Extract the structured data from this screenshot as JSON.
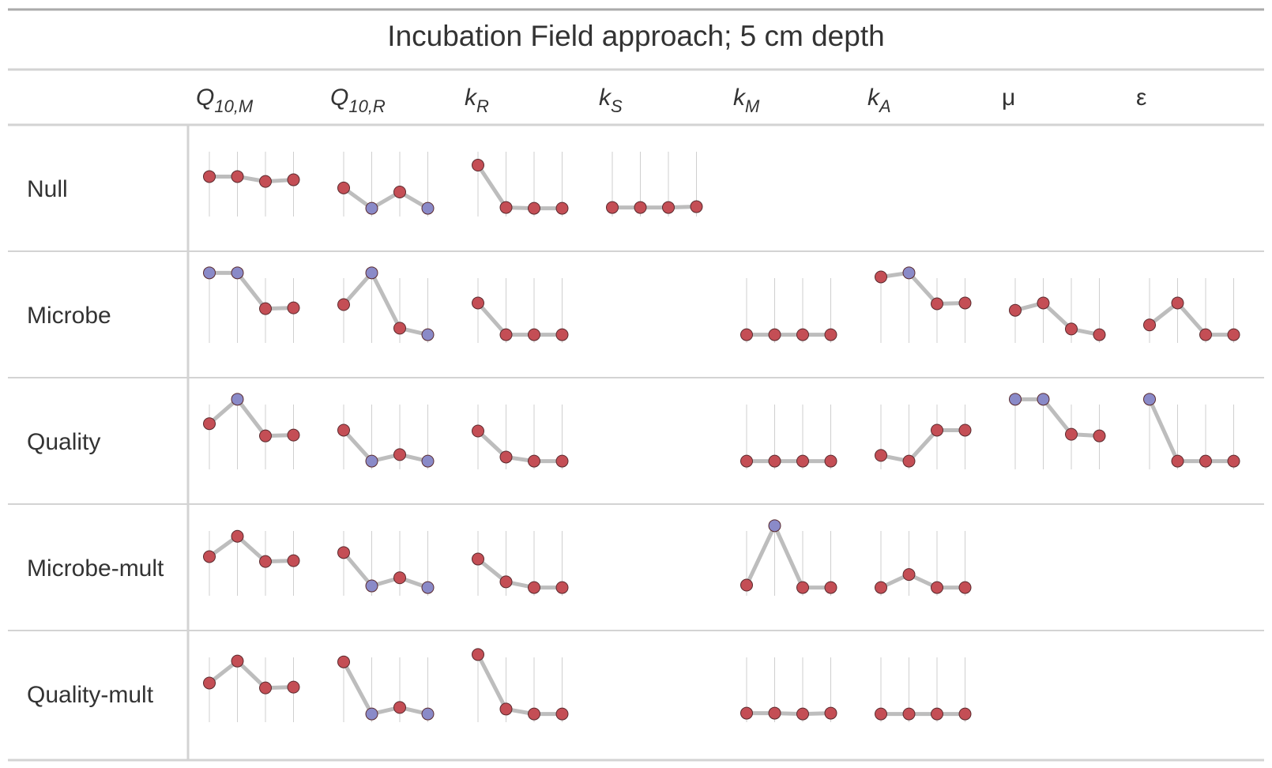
{
  "title": "Incubation Field approach; 5 cm depth",
  "columns": [
    {
      "id": "q10m",
      "main": "Q",
      "sub": "10,M"
    },
    {
      "id": "q10r",
      "main": "Q",
      "sub": "10,R"
    },
    {
      "id": "kr",
      "main": "k",
      "sub": "R"
    },
    {
      "id": "ks",
      "main": "k",
      "sub": "S"
    },
    {
      "id": "km",
      "main": "k",
      "sub": "M"
    },
    {
      "id": "ka",
      "main": "k",
      "sub": "A"
    },
    {
      "id": "mu",
      "main": "μ",
      "sub": ""
    },
    {
      "id": "eps",
      "main": "ε",
      "sub": ""
    }
  ],
  "rows": [
    "Null",
    "Microbe",
    "Quality",
    "Microbe-mult",
    "Quality-mult"
  ],
  "colors": {
    "red_point": "#C44E55",
    "blue_point": "#8A8AC8",
    "line": "#BDBDBD",
    "gridline": "#CFCFCF",
    "rule": "#AAAAAA"
  },
  "chart_data": {
    "type": "line",
    "title": "Incubation Field approach; 5 cm depth",
    "note": "Each cell is a four-point sparkline; y values are relative levels within the cell (0 = lowest, 1 = highest); color marks the point as red or blue.",
    "cells": [
      {
        "row": "Null",
        "column": "Q10,M",
        "values": [
          0.52,
          0.52,
          0.46,
          0.48
        ],
        "colors": [
          "red",
          "red",
          "red",
          "red"
        ]
      },
      {
        "row": "Null",
        "column": "Q10,R",
        "values": [
          0.38,
          0.13,
          0.33,
          0.13
        ],
        "colors": [
          "red",
          "blue",
          "red",
          "blue"
        ]
      },
      {
        "row": "Null",
        "column": "kR",
        "values": [
          0.66,
          0.14,
          0.13,
          0.13
        ],
        "colors": [
          "red",
          "red",
          "red",
          "red"
        ]
      },
      {
        "row": "Null",
        "column": "kS",
        "values": [
          0.14,
          0.14,
          0.14,
          0.15
        ],
        "colors": [
          "red",
          "red",
          "red",
          "red"
        ]
      },
      {
        "row": "Microbe",
        "column": "Q10,M",
        "values": [
          0.89,
          0.89,
          0.45,
          0.46
        ],
        "colors": [
          "blue",
          "blue",
          "red",
          "red"
        ]
      },
      {
        "row": "Microbe",
        "column": "Q10,R",
        "values": [
          0.5,
          0.89,
          0.21,
          0.13
        ],
        "colors": [
          "red",
          "blue",
          "red",
          "blue"
        ]
      },
      {
        "row": "Microbe",
        "column": "kR",
        "values": [
          0.52,
          0.13,
          0.13,
          0.13
        ],
        "colors": [
          "red",
          "red",
          "red",
          "red"
        ]
      },
      {
        "row": "Microbe",
        "column": "kM",
        "values": [
          0.13,
          0.13,
          0.13,
          0.13
        ],
        "colors": [
          "red",
          "red",
          "red",
          "red"
        ]
      },
      {
        "row": "Microbe",
        "column": "kA",
        "values": [
          0.84,
          0.89,
          0.51,
          0.52
        ],
        "colors": [
          "red",
          "blue",
          "red",
          "red"
        ]
      },
      {
        "row": "Microbe",
        "column": "μ",
        "values": [
          0.43,
          0.52,
          0.2,
          0.13
        ],
        "colors": [
          "red",
          "red",
          "red",
          "red"
        ]
      },
      {
        "row": "Microbe",
        "column": "ε",
        "values": [
          0.25,
          0.52,
          0.13,
          0.13
        ],
        "colors": [
          "red",
          "red",
          "red",
          "red"
        ]
      },
      {
        "row": "Quality",
        "column": "Q10,M",
        "values": [
          0.59,
          0.89,
          0.44,
          0.45
        ],
        "colors": [
          "red",
          "blue",
          "red",
          "red"
        ]
      },
      {
        "row": "Quality",
        "column": "Q10,R",
        "values": [
          0.51,
          0.13,
          0.21,
          0.13
        ],
        "colors": [
          "red",
          "blue",
          "red",
          "blue"
        ]
      },
      {
        "row": "Quality",
        "column": "kR",
        "values": [
          0.5,
          0.18,
          0.13,
          0.13
        ],
        "colors": [
          "red",
          "red",
          "red",
          "red"
        ]
      },
      {
        "row": "Quality",
        "column": "kM",
        "values": [
          0.13,
          0.13,
          0.13,
          0.13
        ],
        "colors": [
          "red",
          "red",
          "red",
          "red"
        ]
      },
      {
        "row": "Quality",
        "column": "kA",
        "values": [
          0.2,
          0.13,
          0.51,
          0.51
        ],
        "colors": [
          "red",
          "red",
          "red",
          "red"
        ]
      },
      {
        "row": "Quality",
        "column": "μ",
        "values": [
          0.89,
          0.89,
          0.46,
          0.44
        ],
        "colors": [
          "blue",
          "blue",
          "red",
          "red"
        ]
      },
      {
        "row": "Quality",
        "column": "ε",
        "values": [
          0.89,
          0.13,
          0.13,
          0.13
        ],
        "colors": [
          "blue",
          "red",
          "red",
          "red"
        ]
      },
      {
        "row": "Microbe-mult",
        "column": "Q10,M",
        "values": [
          0.51,
          0.76,
          0.45,
          0.46
        ],
        "colors": [
          "red",
          "red",
          "red",
          "red"
        ]
      },
      {
        "row": "Microbe-mult",
        "column": "Q10,R",
        "values": [
          0.56,
          0.15,
          0.25,
          0.13
        ],
        "colors": [
          "red",
          "blue",
          "red",
          "blue"
        ]
      },
      {
        "row": "Microbe-mult",
        "column": "kR",
        "values": [
          0.48,
          0.2,
          0.13,
          0.13
        ],
        "colors": [
          "red",
          "red",
          "red",
          "red"
        ]
      },
      {
        "row": "Microbe-mult",
        "column": "kM",
        "values": [
          0.16,
          0.89,
          0.13,
          0.13
        ],
        "colors": [
          "red",
          "blue",
          "red",
          "red"
        ]
      },
      {
        "row": "Microbe-mult",
        "column": "kA",
        "values": [
          0.13,
          0.29,
          0.13,
          0.13
        ],
        "colors": [
          "red",
          "red",
          "red",
          "red"
        ]
      },
      {
        "row": "Quality-mult",
        "column": "Q10,M",
        "values": [
          0.51,
          0.78,
          0.45,
          0.46
        ],
        "colors": [
          "red",
          "red",
          "red",
          "red"
        ]
      },
      {
        "row": "Quality-mult",
        "column": "Q10,R",
        "values": [
          0.77,
          0.13,
          0.21,
          0.13
        ],
        "colors": [
          "red",
          "blue",
          "red",
          "blue"
        ]
      },
      {
        "row": "Quality-mult",
        "column": "kR",
        "values": [
          0.86,
          0.19,
          0.13,
          0.13
        ],
        "colors": [
          "red",
          "red",
          "red",
          "red"
        ]
      },
      {
        "row": "Quality-mult",
        "column": "kM",
        "values": [
          0.14,
          0.14,
          0.13,
          0.14
        ],
        "colors": [
          "red",
          "red",
          "red",
          "red"
        ]
      },
      {
        "row": "Quality-mult",
        "column": "kA",
        "values": [
          0.13,
          0.13,
          0.13,
          0.13
        ],
        "colors": [
          "red",
          "red",
          "red",
          "red"
        ]
      }
    ]
  }
}
